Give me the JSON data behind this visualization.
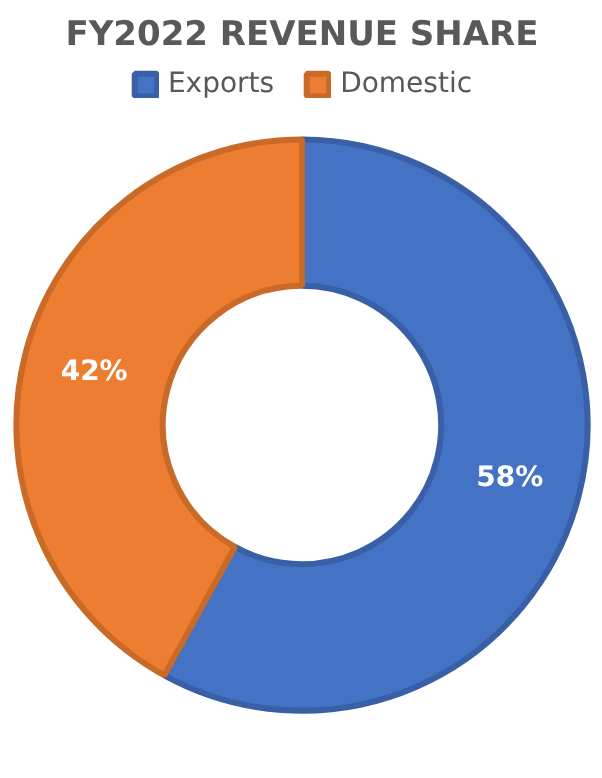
{
  "chart_data": {
    "type": "donut",
    "title": "FY2022 REVENUE SHARE",
    "categories": [
      "Exports",
      "Domestic"
    ],
    "values": [
      58,
      42
    ],
    "colors": [
      "#4472c4",
      "#ed7d31"
    ],
    "value_labels": [
      "58%",
      "42%"
    ],
    "legend": "top"
  }
}
